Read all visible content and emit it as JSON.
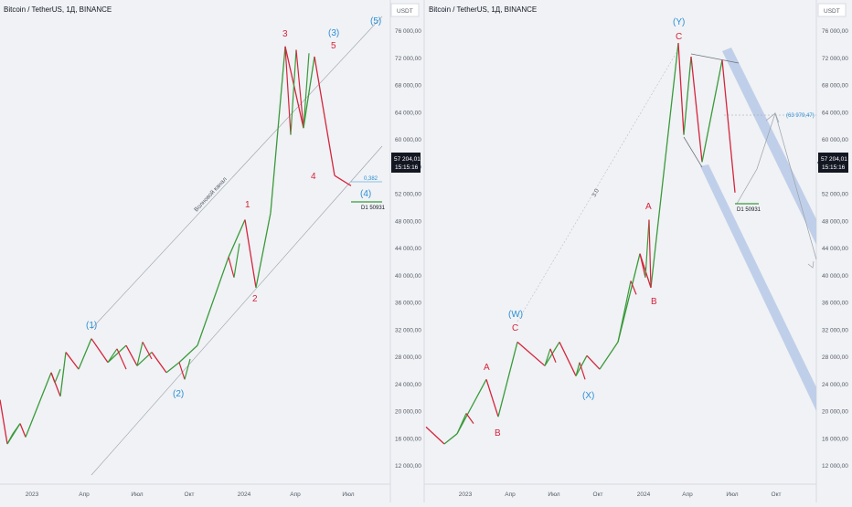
{
  "left": {
    "title": "Bitcoin / TetherUS, 1Д, BINANCE",
    "currency": "USDT",
    "yticks": [
      "76 000,00",
      "72 000,00",
      "68 000,00",
      "64 000,00",
      "60 000,00",
      "56 000,00",
      "52 000,00",
      "48 000,00",
      "44 000,00",
      "40 000,00",
      "36 000,00",
      "32 000,00",
      "28 000,00",
      "24 000,00",
      "20 000,00",
      "16 000,00",
      "12 000,00"
    ],
    "xticks": [
      "2023",
      "Апр",
      "Июл",
      "Окт",
      "2024",
      "Апр",
      "Июл"
    ],
    "price": "57 204,01",
    "countdown": "15:15:16",
    "fib_label": "0,382",
    "d1_label": "D1 50931",
    "channel_label": "Волновой канал",
    "waves": [
      {
        "text": "(1)",
        "color": "blue"
      },
      {
        "text": "(2)",
        "color": "blue"
      },
      {
        "text": "(3)",
        "color": "blue"
      },
      {
        "text": "(4)",
        "color": "blue"
      },
      {
        "text": "(5)",
        "color": "blue"
      },
      {
        "text": "1",
        "color": "red"
      },
      {
        "text": "2",
        "color": "red"
      },
      {
        "text": "3",
        "color": "red"
      },
      {
        "text": "4",
        "color": "red"
      },
      {
        "text": "5",
        "color": "red"
      }
    ]
  },
  "right": {
    "title": "Bitcoin / TetherUS, 1Д, BINANCE",
    "currency": "USDT",
    "yticks": [
      "76 000,00",
      "72 000,00",
      "68 000,00",
      "64 000,00",
      "60 000,00",
      "56 000,00",
      "52 000,00",
      "48 000,00",
      "44 000,00",
      "40 000,00",
      "36 000,00",
      "32 000,00",
      "28 000,00",
      "24 000,00",
      "20 000,00",
      "16 000,00",
      "12 000,00"
    ],
    "xticks": [
      "2023",
      "Апр",
      "Июл",
      "Окт",
      "2024",
      "Апр",
      "Июл",
      "Окт"
    ],
    "price": "57 204,01",
    "countdown": "15:15:16",
    "target_label": "(63 979,47)",
    "d1_label": "D1 50931",
    "fib_ratio": "3.0",
    "waves": [
      {
        "text": "(W)",
        "color": "blue"
      },
      {
        "text": "(X)",
        "color": "blue"
      },
      {
        "text": "(Y)",
        "color": "blue"
      },
      {
        "text": "A",
        "color": "red"
      },
      {
        "text": "B",
        "color": "red"
      },
      {
        "text": "C",
        "color": "red"
      },
      {
        "text": "A",
        "color": "red"
      },
      {
        "text": "B",
        "color": "red"
      },
      {
        "text": "C",
        "color": "red"
      }
    ]
  },
  "colors": {
    "up": "#3a9a3a",
    "down": "#d6243c",
    "wave_blue": "#2b8fd6",
    "wave_red": "#d6243c",
    "channel": "#b7c9e6"
  },
  "chart_data": [
    {
      "type": "line",
      "title": "Bitcoin / TetherUS, 1Д, BINANCE",
      "ylim": [
        12000,
        78000
      ],
      "x": [
        "2023-01",
        "2023-01",
        "2023-02",
        "2023-03",
        "2023-04",
        "2023-05",
        "2023-06",
        "2023-07",
        "2023-08",
        "2023-09",
        "2023-10",
        "2023-11",
        "2023-12",
        "2024-01",
        "2024-02",
        "2024-03",
        "2024-04",
        "2024-05",
        "2024-06",
        "2024-07"
      ],
      "series": [
        {
          "values": [
            16500,
            17000,
            23500,
            21000,
            30000,
            26500,
            25500,
            30500,
            26000,
            25500,
            27000,
            36500,
            43000,
            38500,
            48500,
            73000,
            60500,
            72000,
            61000,
            54000
          ]
        }
      ]
    },
    {
      "type": "line",
      "title": "Bitcoin / TetherUS, 1Д, BINANCE",
      "ylim": [
        12000,
        78000
      ],
      "x": [
        "2023-01",
        "2023-01",
        "2023-02",
        "2023-03",
        "2023-04",
        "2023-05",
        "2023-06",
        "2023-07",
        "2023-08",
        "2023-09",
        "2023-10",
        "2023-11",
        "2023-12",
        "2024-01",
        "2024-02",
        "2024-03",
        "2024-04",
        "2024-05",
        "2024-06",
        "2024-07"
      ],
      "series": [
        {
          "values": [
            18000,
            16500,
            25000,
            19500,
            30500,
            27000,
            25500,
            30000,
            25500,
            25500,
            28500,
            36500,
            43500,
            38500,
            48500,
            73500,
            60500,
            72000,
            61000,
            54000
          ]
        }
      ]
    }
  ]
}
